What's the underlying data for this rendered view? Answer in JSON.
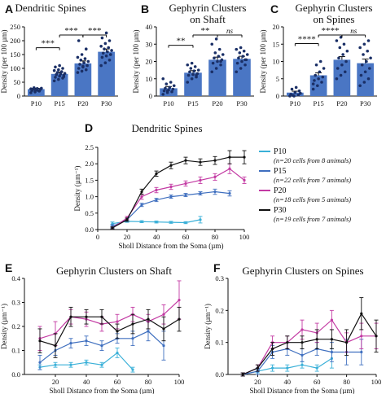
{
  "panels": [
    {
      "letter": "A",
      "title": "Dendritic Spines",
      "ylabel": "Density (per 100 µm)"
    },
    {
      "letter": "B",
      "title": "Gephyrin Clusters on Shaft",
      "ylabel": "Density (per 100 µm)"
    },
    {
      "letter": "C",
      "title": "Gephyrin Clusters on Spines",
      "ylabel": "Density (per 100 µm)"
    },
    {
      "letter": "D",
      "title": "Dendritic Spines",
      "ylabel": "Density (µm⁻¹)",
      "xlabel": "Sholl Distance from the Soma (µm)"
    },
    {
      "letter": "E",
      "title": "Gephyrin Clusters on Shaft",
      "ylabel": "Density (µm⁻¹)",
      "xlabel": "Sholl Distance from the Soma (µm)"
    },
    {
      "letter": "F",
      "title": "Gephyrin Clusters on Spines",
      "ylabel": "Density (µm⁻¹)",
      "xlabel": "Sholl Distance from the Soma (µm)"
    }
  ],
  "legend": [
    {
      "name": "P10",
      "note": "(n=20 cells from 8 animals)",
      "color": "#3ab0d8"
    },
    {
      "name": "P15",
      "note": "(n=22 cells from 7 animals)",
      "color": "#3f6fbf"
    },
    {
      "name": "P20",
      "note": "(n=18 cells from 5 animals)",
      "color": "#c33aa3"
    },
    {
      "name": "P30",
      "note": "(n=19 cells from 7 animals)",
      "color": "#111111"
    }
  ],
  "colors": {
    "bar_fill": "#4a76c4",
    "dot": "#1a2f66"
  },
  "chart_data": [
    {
      "type": "bar",
      "panel": "A",
      "categories": [
        "P10",
        "P15",
        "P20",
        "P30"
      ],
      "values": [
        25,
        80,
        118,
        160
      ],
      "errors": [
        3,
        7,
        9,
        10
      ],
      "points": [
        [
          12,
          15,
          18,
          20,
          22,
          24,
          25,
          27,
          28,
          30,
          20,
          26,
          23
        ],
        [
          55,
          60,
          65,
          68,
          72,
          75,
          78,
          80,
          82,
          85,
          88,
          92,
          95,
          100,
          105,
          110,
          70,
          78
        ],
        [
          85,
          90,
          95,
          100,
          105,
          110,
          115,
          120,
          125,
          130,
          135,
          140,
          150,
          170,
          200,
          108
        ],
        [
          110,
          120,
          130,
          140,
          145,
          150,
          155,
          160,
          165,
          170,
          175,
          180,
          190,
          200,
          210,
          228,
          150
        ]
      ],
      "ylim": [
        0,
        250
      ],
      "yticks": [
        0,
        50,
        100,
        150,
        200,
        250
      ],
      "significance": [
        {
          "pair": [
            "P10",
            "P15"
          ],
          "label": "***"
        },
        {
          "pair": [
            "P15",
            "P20"
          ],
          "label": "***"
        },
        {
          "pair": [
            "P20",
            "P30"
          ],
          "label": "***"
        }
      ]
    },
    {
      "type": "bar",
      "panel": "B",
      "categories": [
        "P10",
        "P15",
        "P20",
        "P30"
      ],
      "values": [
        4.5,
        13.5,
        21,
        21.5
      ],
      "errors": [
        1,
        1.2,
        1.5,
        1.5
      ],
      "points": [
        [
          1,
          2,
          2.5,
          3,
          3.5,
          4,
          4.5,
          5,
          6,
          7,
          8,
          10,
          3
        ],
        [
          8,
          10,
          11,
          12,
          12.5,
          13,
          14,
          14.5,
          15,
          16,
          17,
          18,
          19,
          12
        ],
        [
          14,
          16,
          18,
          19,
          20,
          21,
          22,
          23,
          24,
          25,
          27,
          30,
          33,
          20
        ],
        [
          14,
          16,
          18,
          19,
          20,
          21,
          22,
          23,
          24,
          25,
          26,
          27,
          28,
          21
        ]
      ],
      "ylim": [
        0,
        40
      ],
      "yticks": [
        0,
        10,
        20,
        30,
        40
      ],
      "significance": [
        {
          "pair": [
            "P10",
            "P15"
          ],
          "label": "**"
        },
        {
          "pair": [
            "P15",
            "P20"
          ],
          "label": "**"
        },
        {
          "pair": [
            "P20",
            "P30"
          ],
          "label": "ns"
        }
      ]
    },
    {
      "type": "bar",
      "panel": "C",
      "categories": [
        "P10",
        "P15",
        "P20",
        "P30"
      ],
      "values": [
        1,
        6,
        10.5,
        9.5
      ],
      "errors": [
        0.4,
        0.7,
        0.9,
        1.2
      ],
      "points": [
        [
          0,
          0,
          0.3,
          0.5,
          1,
          1.5,
          2,
          2.5,
          0.8,
          0.2
        ],
        [
          2,
          3,
          4,
          4.5,
          5,
          5.5,
          6,
          7,
          8,
          9,
          10,
          3.5
        ],
        [
          5,
          6,
          7,
          8,
          9,
          10,
          11,
          12,
          13,
          14,
          15,
          16,
          17
        ],
        [
          3,
          4,
          5,
          6,
          7,
          8,
          9,
          10,
          11,
          12,
          13,
          14,
          15,
          16
        ]
      ],
      "ylim": [
        0,
        20
      ],
      "yticks": [
        0,
        5,
        10,
        15,
        20
      ],
      "significance": [
        {
          "pair": [
            "P10",
            "P15"
          ],
          "label": "****"
        },
        {
          "pair": [
            "P15",
            "P20"
          ],
          "label": "****"
        },
        {
          "pair": [
            "P20",
            "P30"
          ],
          "label": "ns"
        }
      ]
    },
    {
      "type": "line",
      "panel": "D",
      "xlim": [
        0,
        100
      ],
      "ylim": [
        0,
        2.5
      ],
      "xticks": [
        0,
        20,
        40,
        60,
        80,
        100
      ],
      "yticks": [
        0.0,
        0.5,
        1.0,
        1.5,
        2.0,
        2.5
      ],
      "series": [
        {
          "name": "P10",
          "x": [
            10,
            20,
            30,
            40,
            50,
            60,
            70
          ],
          "y": [
            0.18,
            0.25,
            0.24,
            0.23,
            0.22,
            0.21,
            0.3
          ],
          "err": [
            0.05,
            0.03,
            0.03,
            0.03,
            0.03,
            0.03,
            0.1
          ]
        },
        {
          "name": "P15",
          "x": [
            10,
            20,
            30,
            40,
            50,
            60,
            70,
            80,
            90
          ],
          "y": [
            0.1,
            0.3,
            0.75,
            0.9,
            1.0,
            1.05,
            1.1,
            1.15,
            1.1
          ],
          "err": [
            0.05,
            0.05,
            0.05,
            0.05,
            0.05,
            0.05,
            0.05,
            0.08,
            0.08
          ]
        },
        {
          "name": "P20",
          "x": [
            10,
            20,
            30,
            40,
            50,
            60,
            70,
            80,
            90,
            100
          ],
          "y": [
            0.05,
            0.35,
            1.0,
            1.2,
            1.3,
            1.4,
            1.5,
            1.6,
            1.85,
            1.5
          ],
          "err": [
            0.03,
            0.05,
            0.08,
            0.08,
            0.08,
            0.08,
            0.1,
            0.1,
            0.15,
            0.1
          ]
        },
        {
          "name": "P30",
          "x": [
            10,
            20,
            30,
            40,
            50,
            60,
            70,
            80,
            90,
            100
          ],
          "y": [
            0.05,
            0.3,
            1.15,
            1.7,
            1.95,
            2.1,
            2.05,
            2.1,
            2.2,
            2.2
          ],
          "err": [
            0.03,
            0.05,
            0.08,
            0.08,
            0.1,
            0.1,
            0.1,
            0.12,
            0.2,
            0.2
          ]
        }
      ]
    },
    {
      "type": "line",
      "panel": "E",
      "xlim": [
        0,
        100
      ],
      "ylim": [
        0,
        0.4
      ],
      "xticks": [
        20,
        40,
        60,
        80,
        100
      ],
      "yticks": [
        0.0,
        0.1,
        0.2,
        0.3,
        0.4
      ],
      "series": [
        {
          "name": "P10",
          "x": [
            10,
            20,
            30,
            40,
            50,
            60,
            70
          ],
          "y": [
            0.03,
            0.04,
            0.04,
            0.05,
            0.04,
            0.09,
            0.02
          ],
          "err": [
            0.01,
            0.01,
            0.01,
            0.01,
            0.01,
            0.02,
            0.01
          ]
        },
        {
          "name": "P15",
          "x": [
            10,
            20,
            30,
            40,
            50,
            60,
            70,
            80,
            90
          ],
          "y": [
            0.05,
            0.1,
            0.13,
            0.14,
            0.12,
            0.15,
            0.15,
            0.18,
            0.12
          ],
          "err": [
            0.03,
            0.02,
            0.02,
            0.02,
            0.02,
            0.02,
            0.03,
            0.04,
            0.06
          ]
        },
        {
          "name": "P20",
          "x": [
            10,
            20,
            30,
            40,
            50,
            60,
            70,
            80,
            90,
            100
          ],
          "y": [
            0.15,
            0.17,
            0.24,
            0.23,
            0.21,
            0.22,
            0.25,
            0.22,
            0.25,
            0.31
          ],
          "err": [
            0.05,
            0.05,
            0.03,
            0.03,
            0.03,
            0.03,
            0.03,
            0.03,
            0.04,
            0.08
          ]
        },
        {
          "name": "P30",
          "x": [
            10,
            20,
            30,
            40,
            50,
            60,
            70,
            80,
            90,
            100
          ],
          "y": [
            0.14,
            0.12,
            0.24,
            0.24,
            0.24,
            0.18,
            0.21,
            0.23,
            0.19,
            0.23
          ],
          "err": [
            0.05,
            0.05,
            0.04,
            0.03,
            0.03,
            0.03,
            0.04,
            0.04,
            0.05,
            0.05
          ]
        }
      ]
    },
    {
      "type": "line",
      "panel": "F",
      "xlim": [
        0,
        100
      ],
      "ylim": [
        0,
        0.3
      ],
      "xticks": [
        20,
        40,
        60,
        80,
        100
      ],
      "yticks": [
        0.0,
        0.1,
        0.2,
        0.3
      ],
      "series": [
        {
          "name": "P10",
          "x": [
            10,
            20,
            30,
            40,
            50,
            60,
            70
          ],
          "y": [
            0.0,
            0.01,
            0.02,
            0.02,
            0.03,
            0.02,
            0.05
          ],
          "err": [
            0.005,
            0.005,
            0.01,
            0.01,
            0.01,
            0.01,
            0.03
          ]
        },
        {
          "name": "P15",
          "x": [
            10,
            20,
            30,
            40,
            50,
            60,
            70,
            80,
            90
          ],
          "y": [
            0.0,
            0.01,
            0.07,
            0.08,
            0.06,
            0.08,
            0.07,
            0.07,
            0.07
          ],
          "err": [
            0.005,
            0.01,
            0.02,
            0.02,
            0.02,
            0.02,
            0.03,
            0.04,
            0.04
          ]
        },
        {
          "name": "P20",
          "x": [
            10,
            20,
            30,
            40,
            50,
            60,
            70,
            80,
            90,
            100
          ],
          "y": [
            0.0,
            0.02,
            0.1,
            0.1,
            0.14,
            0.13,
            0.17,
            0.1,
            0.12,
            0.12
          ],
          "err": [
            0.005,
            0.01,
            0.02,
            0.02,
            0.03,
            0.03,
            0.03,
            0.03,
            0.04,
            0.04
          ]
        },
        {
          "name": "P30",
          "x": [
            10,
            20,
            30,
            40,
            50,
            60,
            70,
            80,
            90,
            100
          ],
          "y": [
            0.0,
            0.02,
            0.08,
            0.1,
            0.1,
            0.11,
            0.11,
            0.1,
            0.19,
            0.12
          ],
          "err": [
            0.005,
            0.01,
            0.02,
            0.02,
            0.02,
            0.03,
            0.03,
            0.04,
            0.05,
            0.05
          ]
        }
      ]
    }
  ]
}
